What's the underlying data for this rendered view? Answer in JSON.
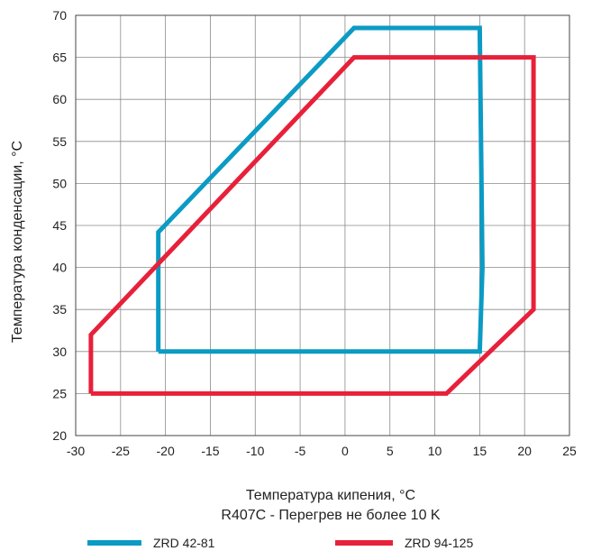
{
  "chart_data": {
    "type": "line",
    "title": "",
    "xlabel": "Температура кипения, °C",
    "ylabel": "Температура конденсации, °C",
    "subtitle": "R407C - Перегрев не более 10 K",
    "xlim": [
      -30,
      25
    ],
    "ylim": [
      20,
      70
    ],
    "x_ticks": [
      "-30",
      "-25",
      "-20",
      "-15",
      "-10",
      "-5",
      "0",
      "5",
      "10",
      "15",
      "20",
      "25"
    ],
    "y_ticks": [
      "20",
      "25",
      "30",
      "35",
      "40",
      "45",
      "50",
      "55",
      "60",
      "65",
      "70"
    ],
    "grid": true,
    "legend_position": "bottom",
    "series": [
      {
        "name": "ZRD 42-81",
        "color": "#0b9bc4",
        "points": [
          [
            -20.8,
            30
          ],
          [
            15,
            30
          ],
          [
            15.3,
            40
          ],
          [
            15,
            68.5
          ],
          [
            1,
            68.5
          ],
          [
            -20.8,
            44.2
          ],
          [
            -20.8,
            30
          ]
        ]
      },
      {
        "name": "ZRD 94-125",
        "color": "#e8203a",
        "points": [
          [
            -28.3,
            25
          ],
          [
            11.3,
            25
          ],
          [
            21,
            35
          ],
          [
            21,
            65
          ],
          [
            1,
            65
          ],
          [
            -28.3,
            32
          ],
          [
            -28.3,
            25
          ]
        ]
      }
    ]
  }
}
